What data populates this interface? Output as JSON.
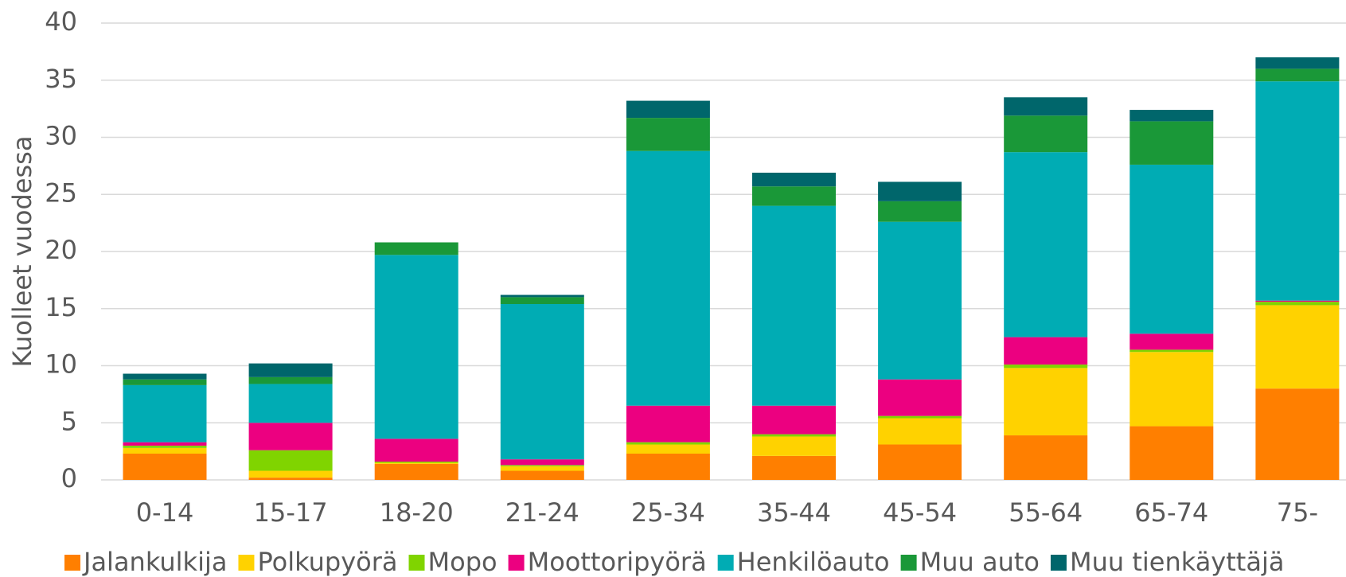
{
  "chart_data": {
    "type": "stacked_bar",
    "y_label": "Kuolleet vuodessa",
    "categories": [
      "0-14",
      "15-17",
      "18-20",
      "21-24",
      "25-34",
      "35-44",
      "45-54",
      "55-64",
      "65-74",
      "75-"
    ],
    "series": [
      {
        "name": "Jalankulkija",
        "color": "#ff7f00",
        "values": [
          2.3,
          0.2,
          1.4,
          0.8,
          2.3,
          2.1,
          3.1,
          3.9,
          4.7,
          8.0
        ]
      },
      {
        "name": "Polkupyörä",
        "color": "#ffd200",
        "values": [
          0.5,
          0.6,
          0.1,
          0.4,
          0.8,
          1.7,
          2.3,
          5.9,
          6.5,
          7.3
        ]
      },
      {
        "name": "Mopo",
        "color": "#80d400",
        "values": [
          0.2,
          1.8,
          0.1,
          0.1,
          0.2,
          0.2,
          0.2,
          0.3,
          0.2,
          0.3
        ]
      },
      {
        "name": "Moottoripyörä",
        "color": "#ec0080",
        "values": [
          0.3,
          2.4,
          2.0,
          0.5,
          3.2,
          2.5,
          3.2,
          2.4,
          1.4,
          0.1
        ]
      },
      {
        "name": "Henkilöauto",
        "color": "#00acb4",
        "values": [
          5.0,
          3.4,
          16.1,
          13.6,
          22.3,
          17.5,
          13.8,
          16.2,
          14.8,
          19.2
        ]
      },
      {
        "name": "Muu auto",
        "color": "#1a9838",
        "values": [
          0.5,
          0.6,
          1.1,
          0.6,
          2.9,
          1.7,
          1.8,
          3.2,
          3.8,
          1.1
        ]
      },
      {
        "name": "Muu tienkäyttäjä",
        "color": "#00666b",
        "values": [
          0.5,
          1.2,
          0,
          0.2,
          1.5,
          1.2,
          1.7,
          1.6,
          1.0,
          1.0
        ]
      }
    ],
    "ylim": [
      0,
      40
    ],
    "yticks": [
      0,
      5,
      10,
      15,
      20,
      25,
      30,
      35,
      40
    ],
    "grid": true,
    "legend": "bottom"
  }
}
